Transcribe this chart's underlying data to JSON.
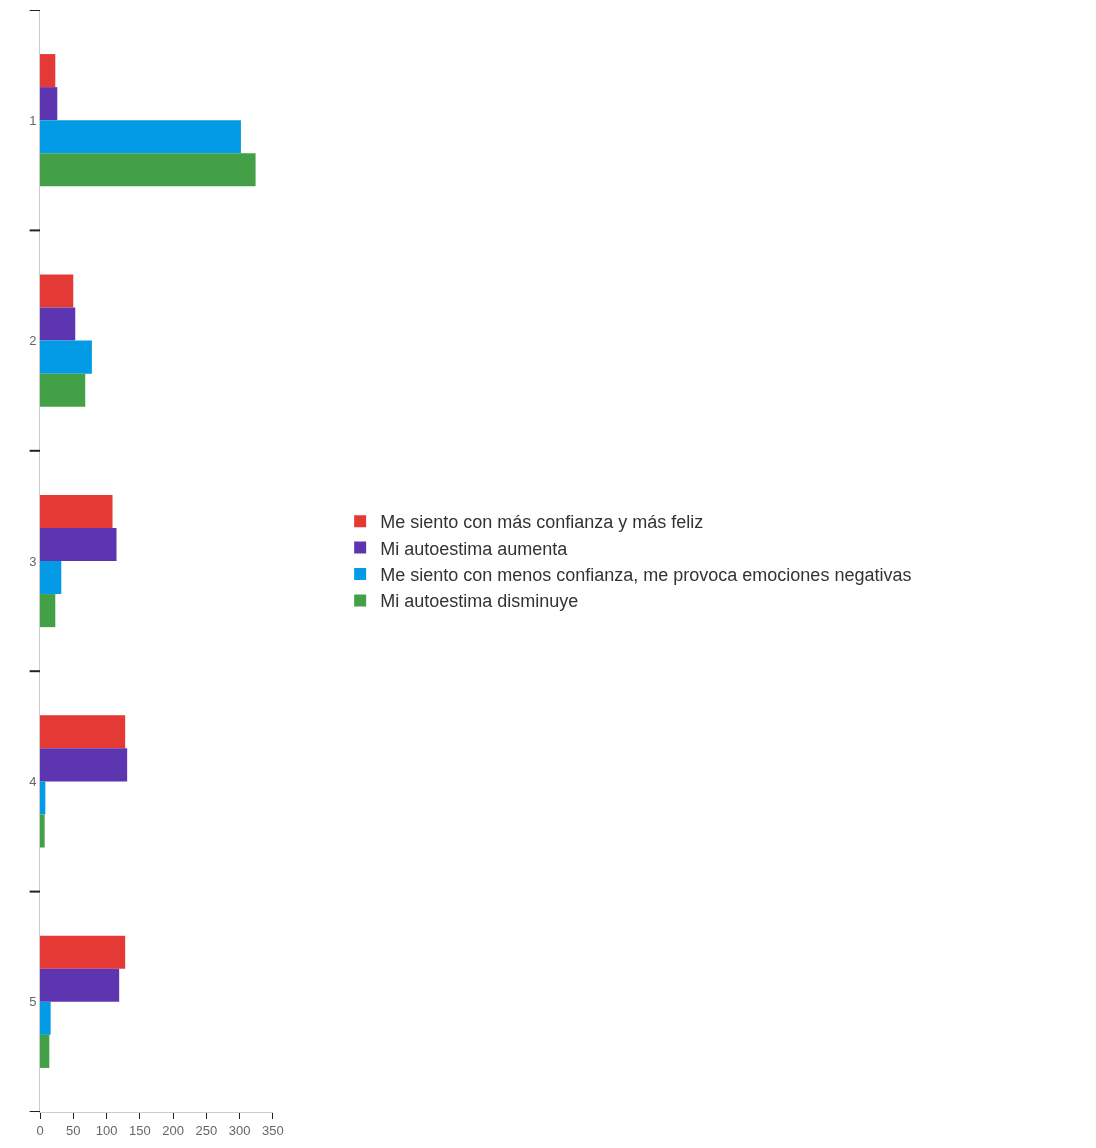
{
  "chart_data": {
    "type": "bar",
    "orientation": "horizontal",
    "categories": [
      "1",
      "2",
      "3",
      "4",
      "5"
    ],
    "series": [
      {
        "name": "Me siento con más confianza y más feliz",
        "color": "#e53935",
        "values": [
          23,
          50,
          109,
          128,
          128
        ]
      },
      {
        "name": "Mi autoestima aumenta",
        "color": "#5e35b1",
        "values": [
          26,
          53,
          115,
          131,
          119
        ]
      },
      {
        "name": "Me siento con menos confianza, me provoca emociones negativas",
        "color": "#039be5",
        "values": [
          302,
          78,
          32,
          8,
          16
        ]
      },
      {
        "name": "Mi autoestima disminuye",
        "color": "#43a047",
        "values": [
          324,
          68,
          23,
          7,
          14
        ]
      }
    ],
    "xlim": [
      0,
      350
    ],
    "xticks": [
      0,
      50,
      100,
      150,
      200,
      250,
      300,
      350
    ],
    "legend": "right"
  }
}
